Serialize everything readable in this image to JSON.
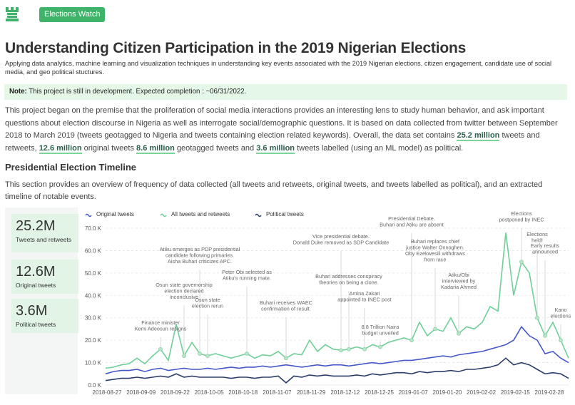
{
  "header": {
    "button_label": "Elections Watch",
    "logo_icon": "castle-icon"
  },
  "page": {
    "title": "Understanding Citizen Participation in the 2019 Nigerian Elections",
    "subtitle": "Applying data analytics, machine learning and visualization techniques in understanding key events associated with the 2019 Nigerian elections, citizen engagement, candidate use of social media, and geo political stuctures."
  },
  "note": {
    "label": "Note:",
    "text": " This project is still in development. Expected completion : ~06/31/2022."
  },
  "intro": {
    "p1": "This project began on the premise that the proliferation of social media interactions provides an interesting lens to study human behavior, and ask important questions about election discourse in Nigeria as well as interrogate social/demographic questions. It is based on data collected from twitter between September 2018 to March 2019 (tweets geotagged to Nigeria and tweets containing election related keywords). Overall, the data set contains ",
    "v1": "25.2 million",
    "p2": " tweets and retweets, ",
    "v2": "12.6 million",
    "p3": " original tweets ",
    "v3": "8.6 million",
    "p4": " geotagged tweets and ",
    "v4": "3.6 million",
    "p5": " tweets labelled (using an ML model) as political."
  },
  "timeline": {
    "heading": "Presidential Election Timeline",
    "description": "This section provides an overview of frequency of data collected (all tweets and retweets, original tweets, and tweets labelled as political), and an extracted timeline of notable events."
  },
  "stats": [
    {
      "value": "25.2M",
      "label": "Tweets and retweets"
    },
    {
      "value": "12.6M",
      "label": "Original tweets"
    },
    {
      "value": "3.6M",
      "label": "Political tweets"
    }
  ],
  "chart_data": {
    "type": "line",
    "yticks": [
      "0.0 K",
      "10.0 K",
      "20.0 K",
      "30.0 K",
      "40.0 K",
      "50.0 K",
      "60.0 K",
      "70.0 K"
    ],
    "ylim": [
      0,
      75000
    ],
    "xticks": [
      "2018-08-27",
      "2018-09-09",
      "2018-09-22",
      "2018-10-05",
      "2018-10-18",
      "2018-11-07",
      "2018-11-29",
      "2018-12-12",
      "2018-12-25",
      "2019-01-07",
      "2019-01-20",
      "2019-02-02",
      "2019-02-15",
      "2019-02-28"
    ],
    "series": [
      {
        "name": "Original tweets",
        "color": "#4558c9",
        "values": [
          5000,
          6000,
          6500,
          6500,
          7000,
          6000,
          7000,
          7500,
          6500,
          7000,
          7500,
          7000,
          7000,
          7500,
          7000,
          7500,
          8000,
          7500,
          8000,
          8000,
          8500,
          8000,
          8500,
          9000,
          8500,
          8000,
          8500,
          9000,
          8500,
          9000,
          9000,
          8500,
          9000,
          9500,
          10000,
          9500,
          10000,
          10500,
          11000,
          11000,
          11500,
          12000,
          12500,
          13000,
          12500,
          13500,
          14000,
          14500,
          15000,
          16000,
          17000,
          18000,
          20000,
          26000,
          22000,
          20000,
          14000,
          15000,
          12000,
          10000
        ]
      },
      {
        "name": "All tweets and retweets",
        "color": "#6fcf97",
        "values": [
          7500,
          8000,
          9000,
          9500,
          12000,
          9500,
          13000,
          16000,
          11000,
          27000,
          13000,
          19000,
          14000,
          13000,
          14000,
          13000,
          12000,
          13000,
          14000,
          12000,
          13500,
          13000,
          15000,
          12000,
          14000,
          13500,
          20000,
          15000,
          18000,
          16000,
          15500,
          16000,
          17000,
          16000,
          18000,
          17000,
          19000,
          20000,
          21000,
          20000,
          28000,
          22000,
          25000,
          24000,
          30000,
          23000,
          26000,
          25000,
          28000,
          35000,
          33000,
          68000,
          40000,
          55000,
          50000,
          30000,
          22000,
          28000,
          20000,
          12000
        ]
      },
      {
        "name": "Political tweets",
        "color": "#2c3e6b",
        "values": [
          2000,
          2500,
          3000,
          3000,
          3500,
          3000,
          3500,
          4000,
          3500,
          5000,
          3500,
          4000,
          3500,
          3500,
          3500,
          3500,
          3000,
          3500,
          3500,
          3000,
          3500,
          3500,
          4000,
          1000,
          4000,
          3500,
          4500,
          4000,
          4500,
          4000,
          4000,
          4000,
          4500,
          4000,
          5000,
          4500,
          5000,
          5500,
          5500,
          5000,
          6000,
          5500,
          6000,
          6000,
          6500,
          6000,
          7000,
          7000,
          7500,
          8000,
          9000,
          12000,
          9000,
          10000,
          9000,
          7000,
          5000,
          5500,
          5000,
          3000
        ]
      }
    ],
    "annotations": [
      {
        "text": "Finance minister\nKemi Adeosun resigns",
        "at": 9,
        "label_top": 455
      },
      {
        "text": "Osun state governorship\nelection declared\ninconclusive",
        "at": 13,
        "label_top": 402
      },
      {
        "text": "Atiku emerges as PDP presidential\ncandidate following primaries.\nAisha Buhari criticizes APC.",
        "at": 16,
        "label_top": 352
      },
      {
        "text": "Osun state\nelection rerun",
        "at": 18,
        "label_top": 423
      },
      {
        "text": "Peter Obi selected as\nAtiku's running mate.",
        "at": 24,
        "label_top": 384
      },
      {
        "text": "Buhari receives WAEC\nconfirmation of result.",
        "at": 31,
        "label_top": 427
      },
      {
        "text": "Vice presidential debate.\nDonald Duke removed as SDP Candidate",
        "at": 40,
        "label_top": 334
      },
      {
        "text": "Buhari addresses conspiracy\ntheories on being a clone.",
        "at": 42,
        "label_top": 390
      },
      {
        "text": "Amina Zakari\nappointed to INEC post",
        "at": 45,
        "label_top": 414
      },
      {
        "text": "8.8 Trillion Naira\nbudget unveiled",
        "at": 48,
        "label_top": 461
      },
      {
        "text": "Presidential Debate.\nBuhari and Atiku are absent",
        "at": 53,
        "label_top": 309
      },
      {
        "text": "Buhari replaces chief\njustice Walter Onnoghen.\nOby Ezekwesili withdraws\nfrom race",
        "at": 57,
        "label_top": 341
      },
      {
        "text": "Atiku/Obi\ninterviewed by\nKadaria Ahmed",
        "at": 61,
        "label_top": 388
      },
      {
        "text": "Elections\npostponed by INEC",
        "at": 72,
        "label_top": 302
      },
      {
        "text": "Elections\nheld!",
        "at": 74,
        "label_top": 331
      },
      {
        "text": "Early results\nannounced",
        "at": 76,
        "label_top": 347
      },
      {
        "text": "Kano\nelections",
        "at": 79,
        "label_top": 437
      }
    ]
  }
}
